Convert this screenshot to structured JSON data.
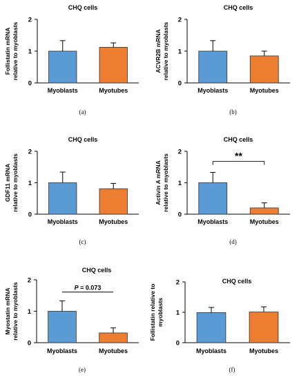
{
  "colors": {
    "myoblasts": "#5b9bd5",
    "myotubes": "#ed7d31",
    "bar_edge": "#2f2f2f"
  },
  "chart_data": [
    {
      "panel": "(a)",
      "type": "bar",
      "title": "CHQ cells",
      "ylabel_lines": [
        "Follistatin mRNA",
        "relative to myoblasts"
      ],
      "categories": [
        "Myoblasts",
        "Myotubes"
      ],
      "values": [
        1.0,
        1.12
      ],
      "errors": [
        0.33,
        0.14
      ],
      "ylim": [
        0,
        2
      ],
      "yticks": [
        0,
        1,
        2
      ],
      "annotation": null
    },
    {
      "panel": "(b)",
      "type": "bar",
      "title": "CHQ cells",
      "ylabel_lines": [
        "ACVR2B mRNA",
        "relative to myoblasts"
      ],
      "categories": [
        "Myoblasts",
        "Myotubes"
      ],
      "values": [
        1.0,
        0.85
      ],
      "errors": [
        0.33,
        0.15
      ],
      "ylim": [
        0,
        2
      ],
      "yticks": [
        0,
        1,
        2
      ],
      "annotation": null
    },
    {
      "panel": "(c)",
      "type": "bar",
      "title": "CHQ cells",
      "ylabel_lines": [
        "GDF11 mRNA",
        "relative to myoblasts"
      ],
      "categories": [
        "Myoblasts",
        "Myotubes"
      ],
      "values": [
        1.0,
        0.81
      ],
      "errors": [
        0.34,
        0.17
      ],
      "ylim": [
        0,
        2
      ],
      "yticks": [
        0,
        1,
        2
      ],
      "annotation": null
    },
    {
      "panel": "(d)",
      "type": "bar",
      "title": "CHQ cells",
      "ylabel_lines": [
        "Activin A mRNA",
        "relative to myoblasts"
      ],
      "categories": [
        "Myoblasts",
        "Myotubes"
      ],
      "values": [
        1.0,
        0.2
      ],
      "errors": [
        0.33,
        0.16
      ],
      "ylim": [
        0,
        2
      ],
      "yticks": [
        0,
        1,
        2
      ],
      "annotation": {
        "text": "**",
        "y": 1.68
      }
    },
    {
      "panel": "(e)",
      "type": "bar",
      "title": "CHQ cells",
      "ylabel_lines": [
        "Myostatin mRNA",
        "relative to myoblasts"
      ],
      "categories": [
        "Myoblasts",
        "Myotubes"
      ],
      "values": [
        1.0,
        0.31
      ],
      "errors": [
        0.33,
        0.16
      ],
      "ylim": [
        0,
        2
      ],
      "yticks": [
        0,
        1,
        2
      ],
      "annotation": {
        "p_label": "P",
        "p_value": " = 0.073",
        "y": 1.61
      }
    },
    {
      "panel": "(f)",
      "type": "bar",
      "title": "CHQ cells",
      "ylabel_lines": [
        "Follistatin relative to",
        "myoblasts"
      ],
      "categories": [
        "Myoblasts",
        "Myotubes"
      ],
      "values": [
        0.99,
        1.01
      ],
      "errors": [
        0.17,
        0.17
      ],
      "ylim": [
        0,
        2
      ],
      "yticks": [
        0,
        1,
        2
      ],
      "annotation": null
    }
  ]
}
